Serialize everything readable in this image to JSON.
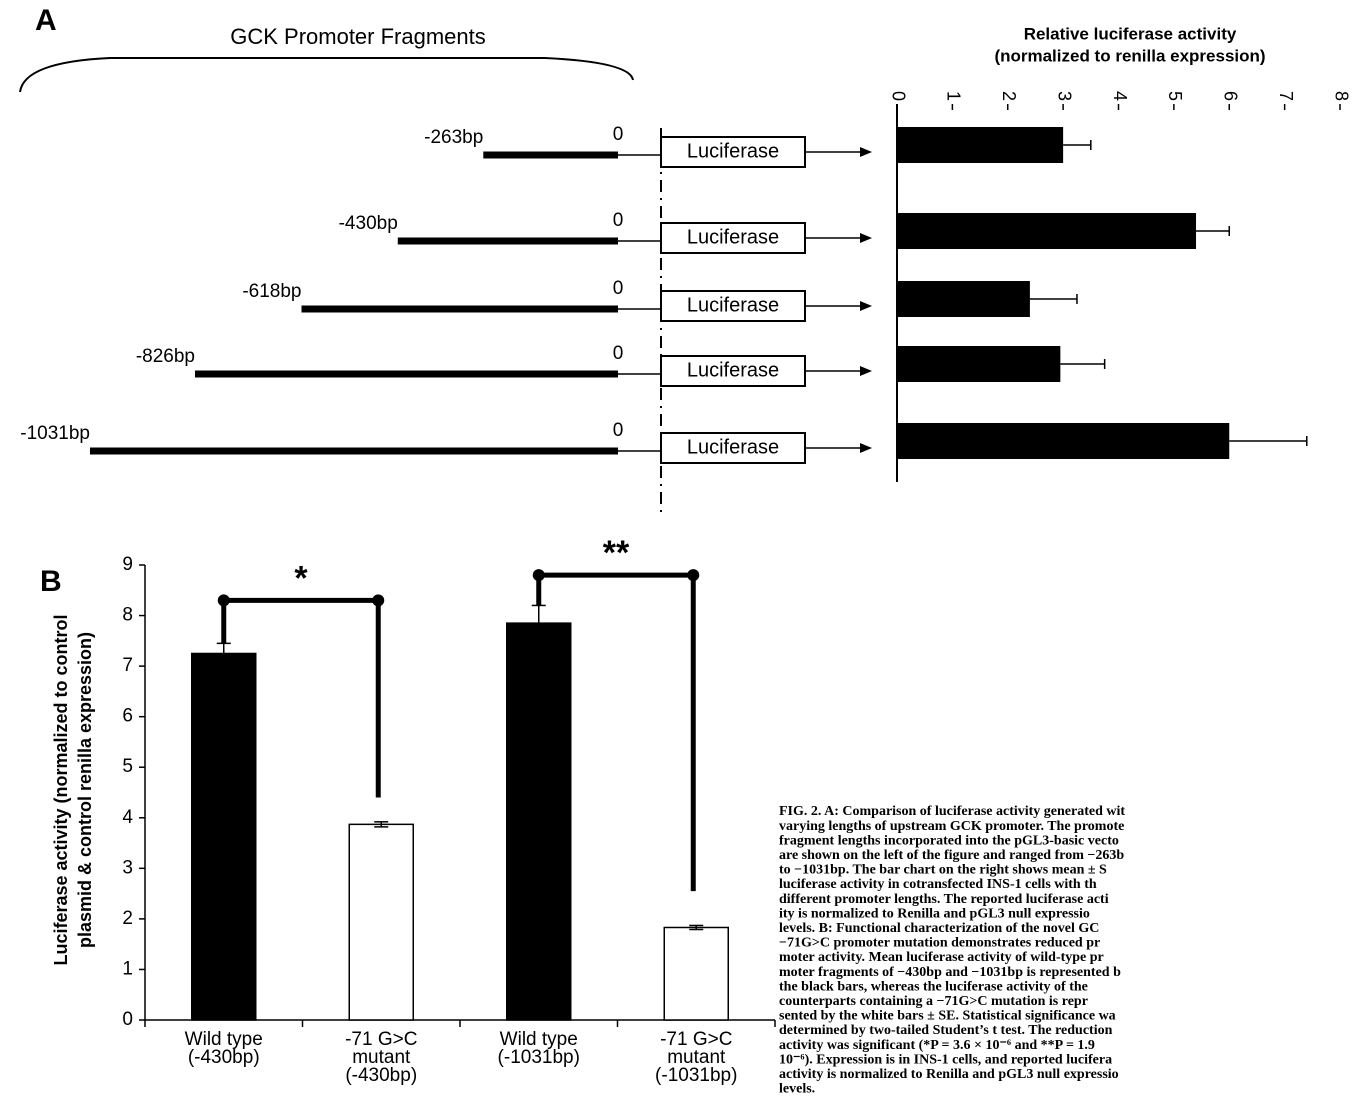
{
  "panel_a": {
    "label": "A",
    "diagram": {
      "title": "GCK Promoter Fragments",
      "fragments": [
        {
          "label": "-263bp",
          "position": -263,
          "end_label": "0",
          "reporter": "Luciferase"
        },
        {
          "label": "-430bp",
          "position": -430,
          "end_label": "0",
          "reporter": "Luciferase"
        },
        {
          "label": "-618bp",
          "position": -618,
          "end_label": "0",
          "reporter": "Luciferase"
        },
        {
          "label": "-826bp",
          "position": -826,
          "end_label": "0",
          "reporter": "Luciferase"
        },
        {
          "label": "-1031bp",
          "position": -1031,
          "end_label": "0",
          "reporter": "Luciferase"
        }
      ]
    },
    "chart_data": {
      "type": "bar",
      "orientation": "horizontal",
      "title": [
        "Relative luciferase activity",
        "(normalized  to renilla expression)"
      ],
      "values": [
        3.0,
        5.4,
        2.4,
        2.95,
        6.0
      ],
      "errors": [
        0.5,
        0.6,
        0.85,
        0.8,
        1.4
      ],
      "color": "#000000",
      "xlim": [
        0,
        8
      ],
      "xticks": [
        0,
        1,
        2,
        3,
        4,
        5,
        6,
        7,
        8
      ]
    }
  },
  "panel_b": {
    "label": "B",
    "chart_data": {
      "type": "bar",
      "ylabel": [
        "Luciferase activity (normalized to control",
        "plasmid & control renilla expression)"
      ],
      "categories": [
        [
          "Wild type",
          "(-430bp)"
        ],
        [
          "-71 G>C",
          "mutant",
          "(-430bp)"
        ],
        [
          "Wild type",
          "(-1031bp)"
        ],
        [
          "-71 G>C",
          "mutant",
          "(-1031bp)"
        ]
      ],
      "values": [
        7.25,
        3.87,
        7.85,
        1.83
      ],
      "errors": [
        0.2,
        0.05,
        0.35,
        0.04
      ],
      "colors": [
        "#000000",
        "#ffffff",
        "#000000",
        "#ffffff"
      ],
      "ylim": [
        0,
        9
      ],
      "yticks": [
        0,
        1,
        2,
        3,
        4,
        5,
        6,
        7,
        8,
        9
      ],
      "significance": [
        {
          "label": "*",
          "from": 0,
          "to": 1,
          "y": 8.3,
          "end": 4.4
        },
        {
          "label": "**",
          "from": 2,
          "to": 3,
          "y": 8.8,
          "end": 2.55
        }
      ]
    }
  },
  "caption": {
    "lines": [
      "FIG. 2. A: Comparison of luciferase activity generated wit",
      "varying lengths of upstream GCK promoter. The promote",
      "fragment lengths incorporated into the pGL3-basic vecto",
      "are shown on the left of the figure and ranged from −263b",
      "to −1031bp. The bar chart on the right shows mean ± S",
      "luciferase activity in cotransfected INS-1 cells with th",
      "different promoter lengths. The reported luciferase acti",
      "ity is normalized to Renilla and pGL3 null expressio",
      "levels. B: Functional characterization of the novel GC",
      "−71G>C promoter mutation demonstrates reduced pr",
      "moter activity. Mean luciferase activity of wild-type pr",
      "moter fragments of −430bp and −1031bp is represented b",
      "the black bars, whereas the luciferase activity of the",
      "counterparts containing a −71G>C mutation is repr",
      "sented by the white bars ± SE. Statistical significance wa",
      "determined by two-tailed Student’s t test. The reduction",
      "activity was significant (*P = 3.6 × 10⁻⁶ and **P = 1.9",
      "10⁻⁶). Expression is in INS-1 cells, and reported lucifera",
      "activity is normalized to Renilla and pGL3 null expressio",
      "levels."
    ]
  }
}
